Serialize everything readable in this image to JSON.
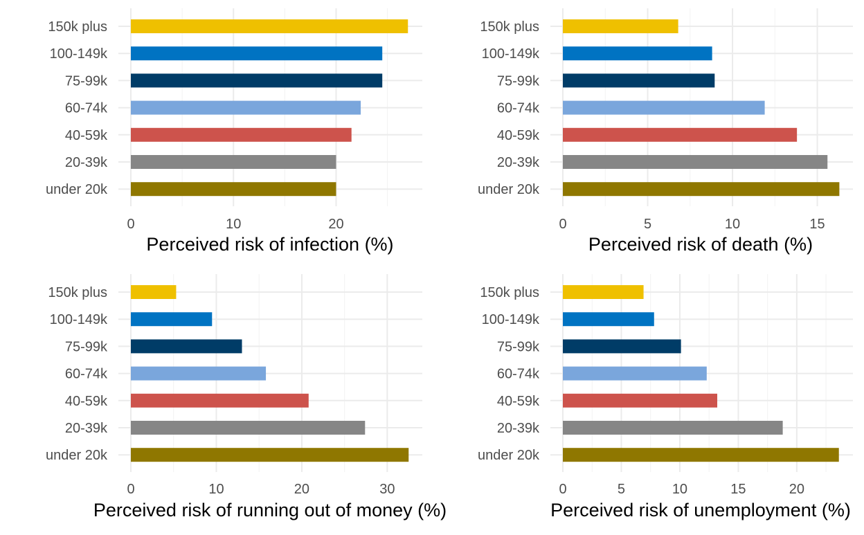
{
  "colors": {
    "150k plus": "#EFC000",
    "100-149k": "#0073C2",
    "75-99k": "#003C67",
    "60-74k": "#7AA6DC",
    "40-59k": "#CD534C",
    "20-39k": "#868686",
    "under 20k": "#8F7700"
  },
  "chart_data": [
    {
      "type": "bar",
      "orientation": "horizontal",
      "categories": [
        "150k plus",
        "100-149k",
        "75-99k",
        "60-74k",
        "40-59k",
        "20-39k",
        "under 20k"
      ],
      "values": [
        27.0,
        24.5,
        24.5,
        22.4,
        21.5,
        20.0,
        20.0
      ],
      "xlabel": "Perceived risk of infection (%)",
      "xticks": [
        0,
        10,
        20
      ],
      "xlim": [
        0,
        28.4
      ],
      "grid": true
    },
    {
      "type": "bar",
      "orientation": "horizontal",
      "categories": [
        "150k plus",
        "100-149k",
        "75-99k",
        "60-74k",
        "40-59k",
        "20-39k",
        "under 20k"
      ],
      "values": [
        6.8,
        8.8,
        8.95,
        11.9,
        13.8,
        15.6,
        16.3
      ],
      "xlabel": "Perceived risk of death (%)",
      "xticks": [
        0,
        5,
        10,
        15
      ],
      "xlim": [
        0,
        17.1
      ],
      "grid": true
    },
    {
      "type": "bar",
      "orientation": "horizontal",
      "categories": [
        "150k plus",
        "100-149k",
        "75-99k",
        "60-74k",
        "40-59k",
        "20-39k",
        "under 20k"
      ],
      "values": [
        5.3,
        9.5,
        13.0,
        15.8,
        20.8,
        27.4,
        32.5
      ],
      "xlabel": "Perceived risk of running out of money (%)",
      "xticks": [
        0,
        10,
        20,
        30
      ],
      "xlim": [
        0,
        34.1
      ],
      "grid": true
    },
    {
      "type": "bar",
      "orientation": "horizontal",
      "categories": [
        "150k plus",
        "100-149k",
        "75-99k",
        "60-74k",
        "40-59k",
        "20-39k",
        "under 20k"
      ],
      "values": [
        6.9,
        7.8,
        10.1,
        12.3,
        13.2,
        18.8,
        23.6
      ],
      "xlabel": "Perceived risk of unemployment (%)",
      "xticks": [
        0,
        5,
        10,
        15,
        20
      ],
      "xlim": [
        0,
        24.8
      ],
      "grid": true
    }
  ]
}
